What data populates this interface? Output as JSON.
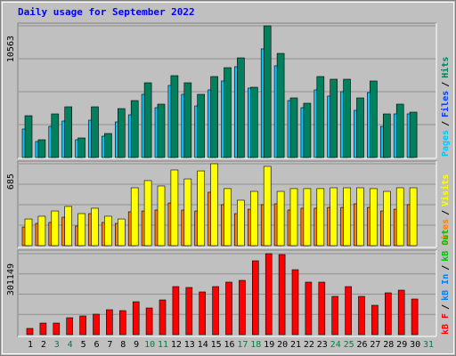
{
  "chart_data": {
    "type": "bar",
    "title": "Daily usage for September 2022",
    "categories": [
      "1",
      "2",
      "3",
      "4",
      "5",
      "6",
      "7",
      "8",
      "9",
      "10",
      "11",
      "12",
      "13",
      "14",
      "15",
      "16",
      "17",
      "18",
      "19",
      "20",
      "21",
      "22",
      "23",
      "24",
      "25",
      "26",
      "27",
      "28",
      "29",
      "30",
      "31"
    ],
    "category_colors": [
      "#000000",
      "#000000",
      "#008040",
      "#008040",
      "#000000",
      "#000000",
      "#000000",
      "#000000",
      "#000000",
      "#008040",
      "#008040",
      "#000000",
      "#000000",
      "#000000",
      "#000000",
      "#000000",
      "#008040",
      "#008040",
      "#000000",
      "#000000",
      "#000000",
      "#000000",
      "#000000",
      "#008040",
      "#008040",
      "#000000",
      "#000000",
      "#000000",
      "#000000",
      "#000000",
      "#008040"
    ],
    "legend_separator": "/",
    "panels": [
      {
        "ylim": [
          0,
          10563
        ],
        "yticks": [
          10563
        ],
        "series": [
          {
            "name": "Pages",
            "color": "#00c8ff",
            "values": [
              2284,
              1285,
              2499,
              2927,
              1428,
              2999,
              1714,
              2856,
              3427,
              5069,
              3998,
              5783,
              5069,
              4141,
              5426,
              6140,
              7283,
              5569,
              8711,
              7354,
              4570,
              3998,
              5426,
              4927,
              5284,
              3784,
              5212,
              2499,
              3499,
              3499,
              null
            ]
          },
          {
            "name": "Files",
            "color": "#0040ff"
          },
          {
            "name": "Hits",
            "color": "#00805c",
            "values": [
              3355,
              1427,
              3497,
              4068,
              1570,
              4068,
              1927,
              3925,
              4568,
              5995,
              4282,
              6566,
              5995,
              5067,
              6495,
              7208,
              7993,
              5638,
              10563,
              8350,
              4782,
              4354,
              6495,
              6281,
              6281,
              4782,
              6138,
              3497,
              4282,
              3640,
              null
            ]
          }
        ]
      },
      {
        "ylim": [
          0,
          685
        ],
        "yticks": [
          685
        ],
        "series": [
          {
            "name": "Sites",
            "color": "#ff8000",
            "values": [
              156,
              186,
              194,
              238,
              164,
              268,
              194,
              186,
              283,
              290,
              298,
              357,
              298,
              290,
              447,
              343,
              268,
              305,
              343,
              350,
              298,
              313,
              313,
              320,
              320,
              350,
              320,
              290,
              305,
              343,
              null
            ]
          },
          {
            "name": "Visits",
            "color": "#ffff00",
            "values": [
              223,
              246,
              290,
              328,
              268,
              313,
              246,
              223,
              484,
              544,
              499,
              633,
              558,
              625,
              685,
              477,
              380,
              454,
              663,
              454,
              477,
              477,
              477,
              484,
              484,
              484,
              477,
              454,
              484,
              484,
              null
            ]
          }
        ]
      },
      {
        "ylim": [
          0,
          301149
        ],
        "yticks": [
          301149
        ],
        "series": [
          {
            "name": "kB F",
            "color": "#ff0000",
            "values": [
              23164,
              43017,
              43017,
              62872,
              69490,
              76108,
              92653,
              89344,
              122434,
              99270,
              129052,
              178687,
              175378,
              158832,
              178687,
              195232,
              201850,
              274649,
              301149,
              297812,
              241557,
              195232,
              195232,
              142287,
              178687,
              142287,
              109197,
              155523,
              165450,
              132360,
              null
            ]
          },
          {
            "name": "kB In",
            "color": "#0080ff"
          },
          {
            "name": "kB Out",
            "color": "#00c000"
          }
        ]
      }
    ]
  }
}
